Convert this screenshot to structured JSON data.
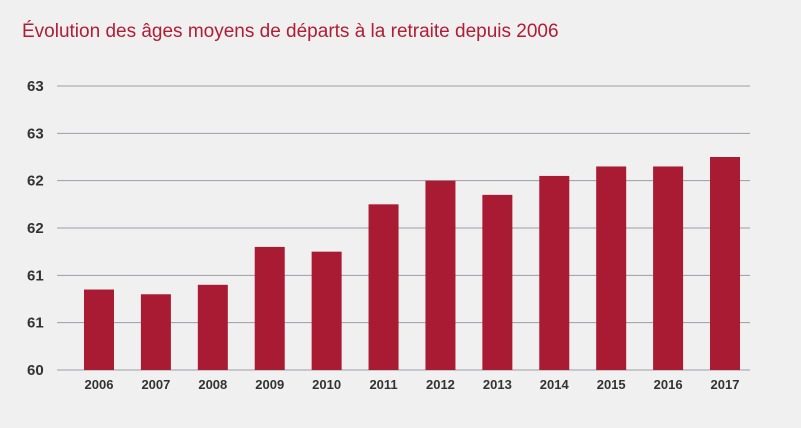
{
  "chart_data": {
    "type": "bar",
    "title": "Évolution des âges moyens de départs à la retraite depuis 2006",
    "xlabel": "",
    "ylabel": "",
    "categories": [
      "2006",
      "2007",
      "2008",
      "2009",
      "2010",
      "2011",
      "2012",
      "2013",
      "2014",
      "2015",
      "2016",
      "2017"
    ],
    "values": [
      60.85,
      60.8,
      60.9,
      61.3,
      61.25,
      61.75,
      62.0,
      61.85,
      62.05,
      62.15,
      62.15,
      62.25
    ],
    "ylim": [
      60.0,
      62.5
    ],
    "y_ticks": [
      60.0,
      60.5,
      61.0,
      61.5,
      62.0,
      62.5,
      63.0
    ],
    "y_tick_labels": [
      "60",
      "61",
      "61",
      "62",
      "62",
      "63",
      "63"
    ],
    "grid": true,
    "legend": "none",
    "colors": {
      "bar": "#a81b33",
      "grid": "#9b9ba6",
      "title": "#b01d35",
      "text": "#333333",
      "background": "#f0f0f0"
    }
  }
}
